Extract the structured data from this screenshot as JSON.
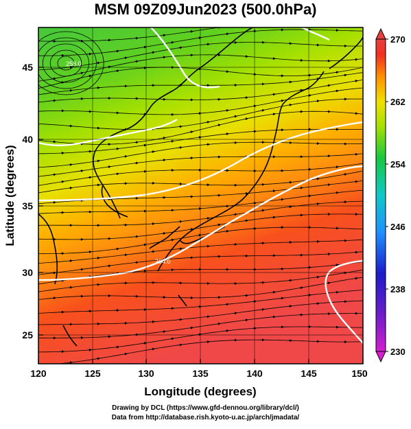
{
  "title": "MSM 09Z09Jun2023 (500.0hPa)",
  "map": {
    "xlabel": "Longitude (degrees)",
    "ylabel": "Latitude  (degrees)",
    "xticks": [
      "120",
      "125",
      "130",
      "135",
      "140",
      "145",
      "150"
    ],
    "yticks": [
      "45",
      "40",
      "35",
      "30",
      "25"
    ],
    "xlim": [
      120,
      150
    ],
    "ylim": [
      22.5,
      47.5
    ],
    "variable": "temperature with wind streamlines",
    "contour_labels": [
      "258.0",
      "264.0"
    ]
  },
  "colorbar": {
    "ticks": [
      "270",
      "262",
      "254",
      "246",
      "238",
      "230"
    ],
    "range": [
      230,
      270
    ],
    "colors": [
      "#d51fd0",
      "#1c1cc8",
      "#1e90ff",
      "#10c8c8",
      "#18c840",
      "#a6e000",
      "#f0e000",
      "#ff9000",
      "#f03020",
      "#e84040"
    ]
  },
  "footer": {
    "line1": "Drawing by DCL (https://www.gfd-dennou.org/library/dcl/)",
    "line2": "Data from http://database.rish.kyoto-u.ac.jp/arch/jmadata/"
  }
}
